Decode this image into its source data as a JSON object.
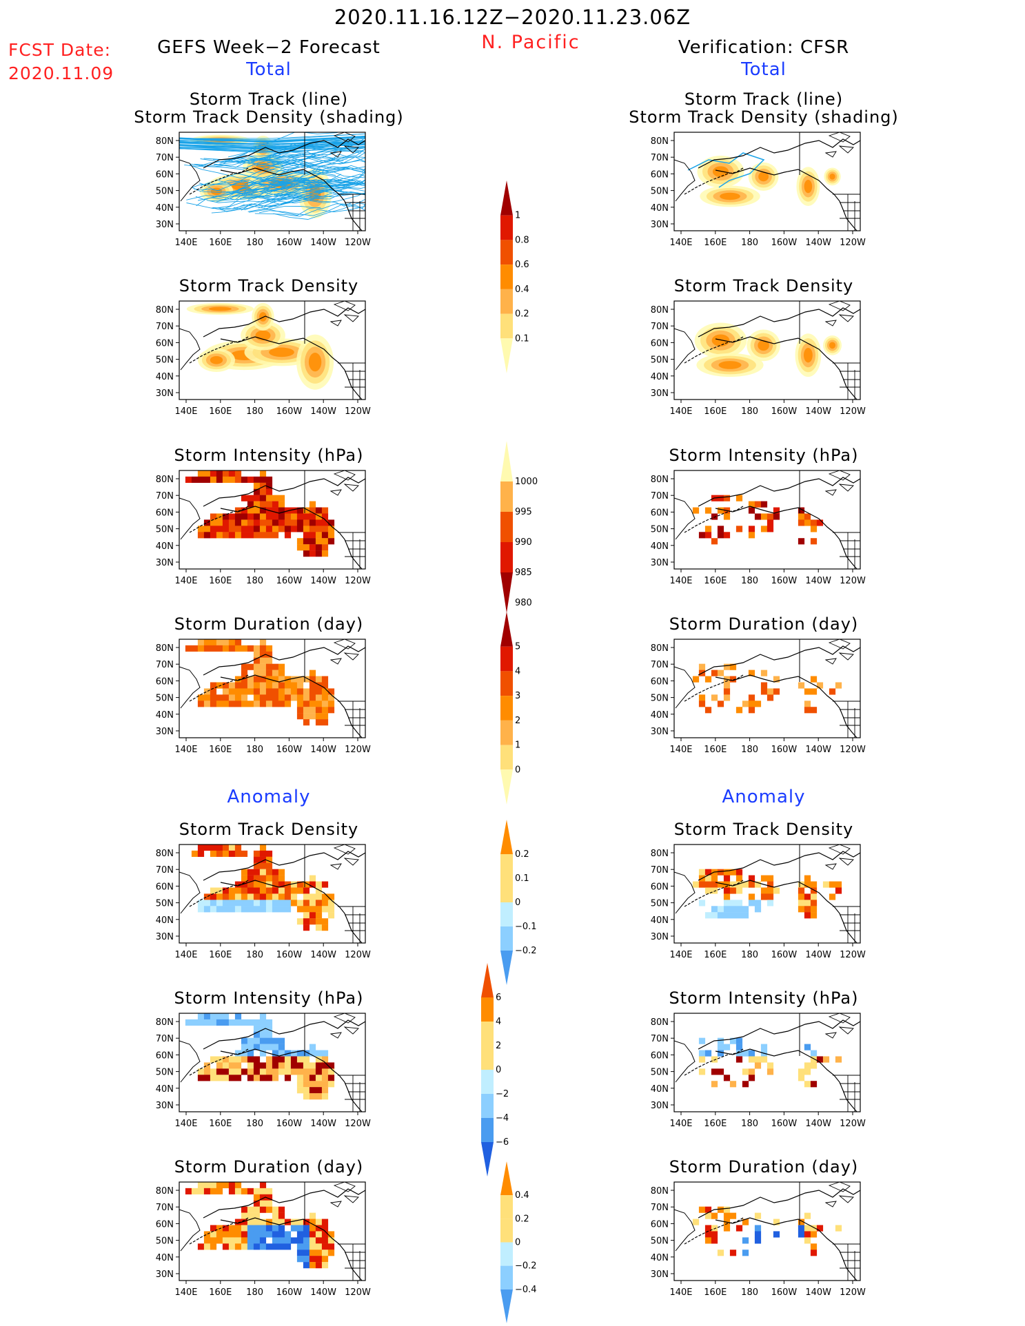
{
  "header": {
    "date_range": "2020.11.16.12Z−2020.11.23.06Z",
    "fcst_label": "FCST Date:",
    "fcst_date": "2020.11.09",
    "region": "N. Pacific",
    "left_title": "GEFS Week−2 Forecast",
    "right_title": "Verification: CFSR",
    "total_label": "Total",
    "anomaly_label": "Anomaly"
  },
  "panel_titles": {
    "track_line": "Storm Track (line)",
    "track_shading": "Storm Track Density (shading)",
    "density": "Storm Track Density",
    "intensity": "Storm Intensity (hPa)",
    "duration": "Storm Duration (day)"
  },
  "axes": {
    "lat_ticks": [
      "80N",
      "70N",
      "60N",
      "50N",
      "40N",
      "30N"
    ],
    "lon_ticks": [
      "140E",
      "160E",
      "180",
      "160W",
      "140W",
      "120W"
    ]
  },
  "colorbars": {
    "density_total": [
      "1",
      "0.8",
      "0.6",
      "0.4",
      "0.2",
      "0.1"
    ],
    "intensity_total": [
      "1000",
      "995",
      "990",
      "985",
      "980"
    ],
    "duration_total": [
      "5",
      "4",
      "3",
      "2",
      "1",
      "0"
    ],
    "density_anom": [
      "0.2",
      "0.1",
      "0",
      "−0.1",
      "−0.2"
    ],
    "intensity_anom": [
      "6",
      "4",
      "2",
      "0",
      "−2",
      "−4",
      "−6"
    ],
    "duration_anom": [
      "0.4",
      "0.2",
      "0",
      "−0.2",
      "−0.4"
    ]
  },
  "colors": {
    "warm": [
      "#fffab0",
      "#ffe07a",
      "#ffb24a",
      "#ff8c00",
      "#f05000",
      "#e01800",
      "#a00000"
    ],
    "cool": [
      "#c0eeff",
      "#8ccfff",
      "#4a9cf0",
      "#2060e0"
    ],
    "track_line": "#1aa3e8"
  }
}
